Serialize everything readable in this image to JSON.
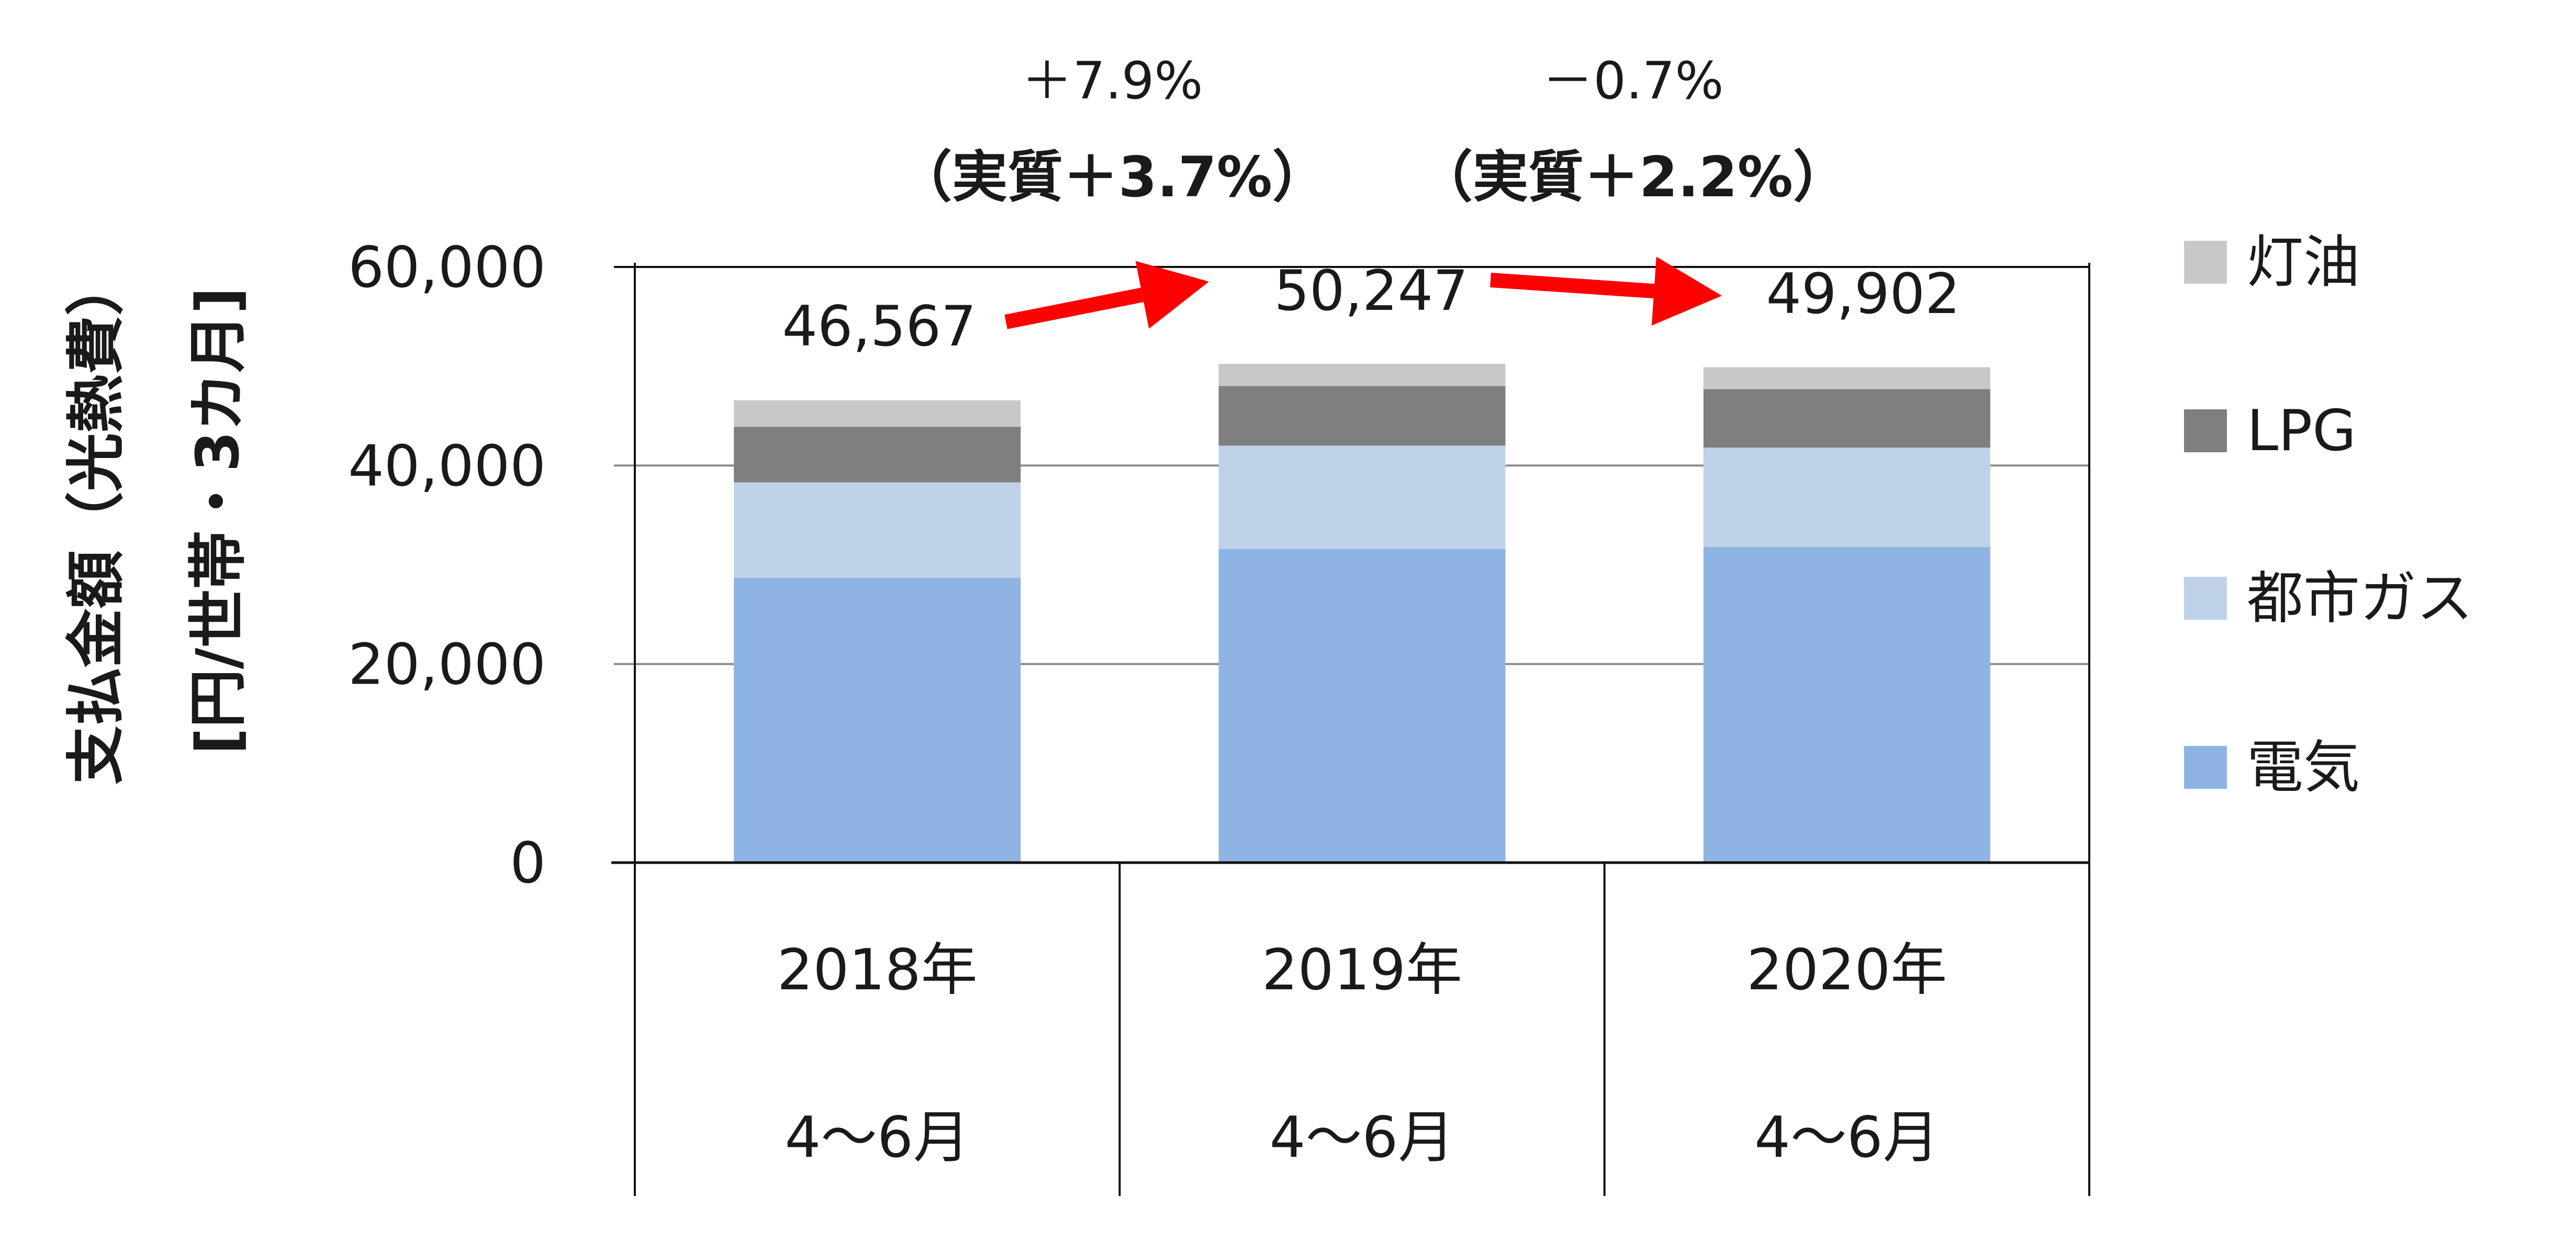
{
  "chart_data": {
    "type": "bar",
    "stacked": true,
    "ylabel": [
      "支払金額（光熱費）",
      "[円/世帯・3カ月]"
    ],
    "ylim": [
      0,
      60000
    ],
    "yticks": [
      0,
      20000,
      40000,
      60000
    ],
    "ytick_labels": [
      "0",
      "20,000",
      "40,000",
      "60,000"
    ],
    "grid": true,
    "categories": [
      {
        "line1": "2018年",
        "line2": "4～6月"
      },
      {
        "line1": "2019年",
        "line2": "4～6月"
      },
      {
        "line1": "2020年",
        "line2": "4～6月"
      }
    ],
    "series": [
      {
        "name": "電気",
        "color": "#8eb4e3",
        "values": [
          28700,
          31600,
          31800
        ]
      },
      {
        "name": "都市ガス",
        "color": "#bfd2e9",
        "values": [
          9600,
          10400,
          10000
        ]
      },
      {
        "name": "LPG",
        "color": "#7f7f7f",
        "values": [
          5600,
          6000,
          5900
        ]
      },
      {
        "name": "灯油",
        "color": "#c8c8c8",
        "values": [
          2667,
          2247,
          2202
        ]
      }
    ],
    "totals": [
      "46,567",
      "50,247",
      "49,902"
    ],
    "legend_position": "right",
    "changes": [
      {
        "nominal": "＋7.9%",
        "real": "（実質＋3.7%）",
        "arrow_color": "#ff0000"
      },
      {
        "nominal": "－0.7%",
        "real": "（実質＋2.2%）",
        "arrow_color": "#ff0000"
      }
    ]
  }
}
